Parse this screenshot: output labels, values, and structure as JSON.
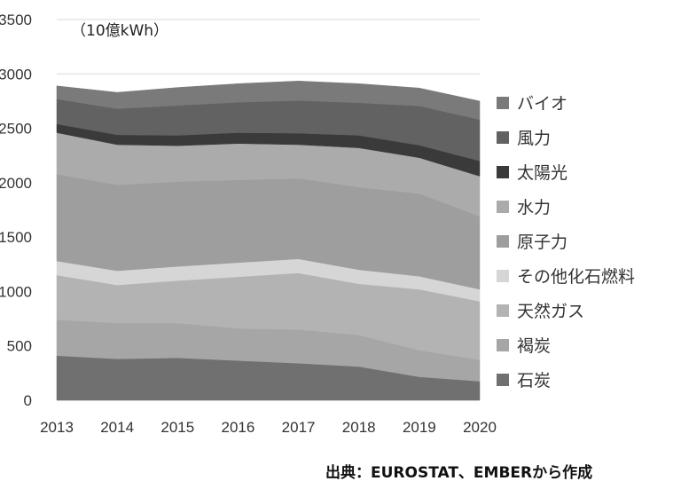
{
  "unit_label": "（10億kWh）",
  "source_note": "出典：EUROSTAT、EMBERから作成",
  "chart_data": {
    "type": "area",
    "stacked": true,
    "x": [
      2013,
      2014,
      2015,
      2016,
      2017,
      2018,
      2019,
      2020
    ],
    "ylim": [
      0,
      3500
    ],
    "yticks": [
      0,
      500,
      1000,
      1500,
      2000,
      2500,
      3000,
      3500
    ],
    "grid": true,
    "legend_position": "right",
    "series": [
      {
        "name": "石炭",
        "color": "#707070",
        "values": [
          410,
          380,
          390,
          365,
          340,
          310,
          215,
          175
        ]
      },
      {
        "name": "褐炭",
        "color": "#a6a6a6",
        "values": [
          330,
          330,
          320,
          295,
          310,
          290,
          245,
          195
        ]
      },
      {
        "name": "天然ガス",
        "color": "#b3b3b3",
        "values": [
          410,
          350,
          390,
          475,
          520,
          470,
          560,
          540
        ]
      },
      {
        "name": "その他化石燃料",
        "color": "#d6d6d6",
        "values": [
          130,
          130,
          130,
          130,
          130,
          130,
          120,
          110
        ]
      },
      {
        "name": "原子力",
        "color": "#9e9e9e",
        "values": [
          800,
          790,
          780,
          760,
          740,
          760,
          760,
          670
        ]
      },
      {
        "name": "水力",
        "color": "#ababab",
        "values": [
          380,
          370,
          330,
          335,
          310,
          360,
          330,
          370
        ]
      },
      {
        "name": "太陽光",
        "color": "#3a3a3a",
        "values": [
          80,
          90,
          95,
          100,
          105,
          115,
          115,
          140
        ]
      },
      {
        "name": "風力",
        "color": "#626262",
        "values": [
          230,
          240,
          275,
          280,
          300,
          300,
          360,
          380
        ]
      },
      {
        "name": "バイオ",
        "color": "#7a7a7a",
        "values": [
          120,
          150,
          165,
          170,
          180,
          175,
          165,
          170
        ]
      }
    ],
    "legend_order": [
      "バイオ",
      "風力",
      "太陽光",
      "水力",
      "原子力",
      "その他化石燃料",
      "天然ガス",
      "褐炭",
      "石炭"
    ]
  }
}
